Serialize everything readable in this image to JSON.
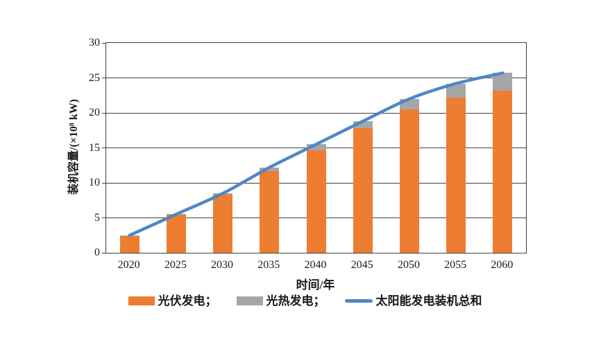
{
  "chart_data": {
    "type": "bar",
    "stacked": true,
    "title": "",
    "categories": [
      "2020",
      "2025",
      "2030",
      "2035",
      "2040",
      "2045",
      "2050",
      "2055",
      "2060"
    ],
    "series": [
      {
        "name": "光伏发电",
        "kind": "bar",
        "color": "#ED7D31",
        "values": [
          2.4,
          5.4,
          8.3,
          11.7,
          14.7,
          17.8,
          20.5,
          22.2,
          23.2
        ]
      },
      {
        "name": "光热发电",
        "kind": "bar",
        "color": "#A6A6A6",
        "values": [
          0.1,
          0.1,
          0.2,
          0.5,
          0.8,
          1.0,
          1.5,
          2.0,
          2.5
        ]
      },
      {
        "name": "太阳能发电装机总和",
        "kind": "line",
        "color": "#4F87C5",
        "values": [
          2.5,
          5.5,
          8.5,
          12.2,
          15.5,
          18.8,
          22.0,
          24.2,
          25.7
        ]
      }
    ],
    "xlabel": "时间/年",
    "ylabel": "装机容量/(×10⁸ kW)",
    "ylim": [
      0,
      30
    ],
    "ytick_step": 5,
    "grid": "horizontal",
    "legend_position": "bottom",
    "axis_color": "#3f3f3f",
    "text_color": "#1a1a1a",
    "background": "#ffffff"
  },
  "legend": {
    "items": [
      {
        "label": "光伏发电；",
        "swatch": "bar",
        "series": 0
      },
      {
        "label": "光热发电；",
        "swatch": "bar",
        "series": 1
      },
      {
        "label": "太阳能发电装机总和",
        "swatch": "line",
        "series": 2
      }
    ]
  }
}
